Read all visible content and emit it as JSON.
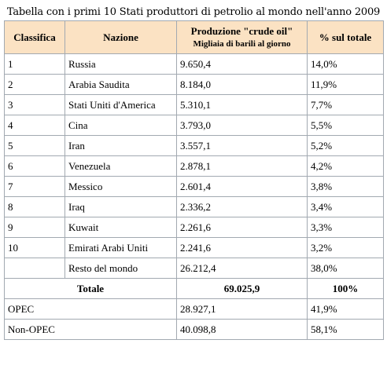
{
  "caption": "Tabella con i primi 10 Stati produttori di petrolio al mondo nell'anno 2009",
  "headers": {
    "rank": "Classifica",
    "nation": "Nazione",
    "production_title": "Produzione \"crude oil\"",
    "production_sub": "Migliaia di barili al giorno",
    "share": "% sul totale"
  },
  "rows": [
    {
      "rank": "1",
      "nation": "Russia",
      "production": "9.650,4",
      "share": "14,0%"
    },
    {
      "rank": "2",
      "nation": "Arabia Saudita",
      "production": "8.184,0",
      "share": "11,9%"
    },
    {
      "rank": "3",
      "nation": "Stati Uniti d'America",
      "production": "5.310,1",
      "share": "7,7%"
    },
    {
      "rank": "4",
      "nation": "Cina",
      "production": "3.793,0",
      "share": "5,5%"
    },
    {
      "rank": "5",
      "nation": "Iran",
      "production": "3.557,1",
      "share": "5,2%"
    },
    {
      "rank": "6",
      "nation": "Venezuela",
      "production": "2.878,1",
      "share": "4,2%"
    },
    {
      "rank": "7",
      "nation": "Messico",
      "production": "2.601,4",
      "share": "3,8%"
    },
    {
      "rank": "8",
      "nation": "Iraq",
      "production": "2.336,2",
      "share": "3,4%"
    },
    {
      "rank": "9",
      "nation": "Kuwait",
      "production": "2.261,6",
      "share": "3,3%"
    },
    {
      "rank": "10",
      "nation": "Emirati Arabi Uniti",
      "production": "2.241,6",
      "share": "3,2%"
    },
    {
      "rank": "",
      "nation": "Resto del mondo",
      "production": "26.212,4",
      "share": "38,0%"
    }
  ],
  "total": {
    "label": "Totale",
    "production": "69.025,9",
    "share": "100%"
  },
  "groups": [
    {
      "label": "OPEC",
      "production": "28.927,1",
      "share": "41,9%"
    },
    {
      "label": "Non-OPEC",
      "production": "40.098,8",
      "share": "58,1%"
    }
  ]
}
